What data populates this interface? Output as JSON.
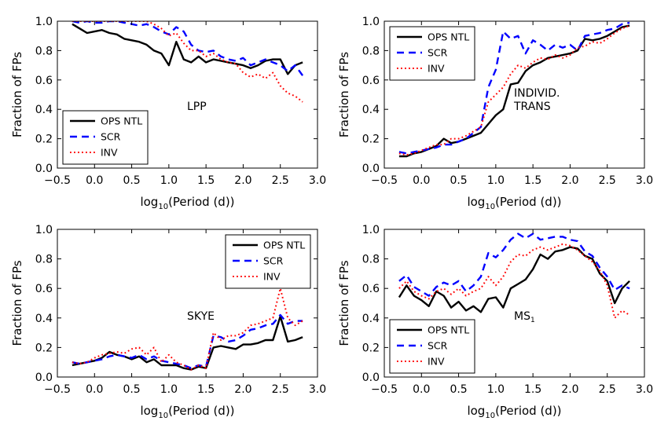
{
  "figure": {
    "series_styles": [
      {
        "color": "#000000",
        "dash": "",
        "width": 2.4
      },
      {
        "color": "#0000ff",
        "dash": "9,6",
        "width": 2.4
      },
      {
        "color": "#ff0000",
        "dash": "1.8,3.2",
        "width": 2.0
      }
    ]
  },
  "chart_data": [
    {
      "type": "line",
      "annotation": [
        "LPP"
      ],
      "xlabel": "log$_{10}$(Period (d))",
      "xlabel_main": "log",
      "xlabel_sub": "10",
      "xlabel_rest": "(Period (d))",
      "ylabel": "Fraction of FPs",
      "xlim": [
        -0.5,
        3.0
      ],
      "ylim": [
        0.0,
        1.0
      ],
      "xticks": [
        "−0.5",
        "0.0",
        "0.5",
        "1.0",
        "1.5",
        "2.0",
        "2.5",
        "3.0"
      ],
      "yticks": [
        "0.0",
        "0.2",
        "0.4",
        "0.6",
        "0.8",
        "1.0"
      ],
      "legend_position": "lower-left",
      "x": [
        -0.3,
        -0.2,
        -0.1,
        0.0,
        0.1,
        0.2,
        0.3,
        0.4,
        0.5,
        0.6,
        0.7,
        0.8,
        0.9,
        1.0,
        1.1,
        1.2,
        1.3,
        1.4,
        1.5,
        1.6,
        1.7,
        1.8,
        1.9,
        2.0,
        2.1,
        2.2,
        2.3,
        2.4,
        2.5,
        2.6,
        2.7,
        2.8
      ],
      "series": [
        {
          "name": "OPS NTL",
          "values": [
            0.98,
            0.95,
            0.92,
            0.93,
            0.94,
            0.92,
            0.91,
            0.88,
            0.87,
            0.86,
            0.84,
            0.8,
            0.78,
            0.7,
            0.86,
            0.74,
            0.72,
            0.76,
            0.72,
            0.74,
            0.73,
            0.72,
            0.71,
            0.7,
            0.68,
            0.7,
            0.73,
            0.74,
            0.74,
            0.64,
            0.7,
            0.72
          ]
        },
        {
          "name": "SCR",
          "values": [
            1.0,
            0.99,
            1.0,
            0.99,
            0.99,
            1.0,
            1.0,
            0.99,
            0.98,
            0.97,
            0.98,
            0.96,
            0.93,
            0.91,
            0.96,
            0.93,
            0.84,
            0.8,
            0.79,
            0.8,
            0.76,
            0.74,
            0.73,
            0.75,
            0.7,
            0.72,
            0.74,
            0.72,
            0.7,
            0.66,
            0.7,
            0.63
          ]
        },
        {
          "name": "INV",
          "values": [
            1.0,
            1.0,
            1.0,
            1.0,
            1.0,
            1.0,
            1.0,
            1.0,
            1.0,
            1.0,
            1.0,
            0.98,
            0.95,
            0.9,
            0.92,
            0.85,
            0.8,
            0.8,
            0.76,
            0.78,
            0.74,
            0.72,
            0.71,
            0.65,
            0.62,
            0.64,
            0.61,
            0.65,
            0.56,
            0.51,
            0.49,
            0.45
          ]
        }
      ]
    },
    {
      "type": "line",
      "annotation": [
        "INDIVID.",
        "TRANS"
      ],
      "xlabel": "log$_{10}$(Period (d))",
      "xlabel_main": "log",
      "xlabel_sub": "10",
      "xlabel_rest": "(Period (d))",
      "ylabel": "Fraction of FPs",
      "xlim": [
        -0.5,
        3.0
      ],
      "ylim": [
        0.0,
        1.0
      ],
      "xticks": [
        "−0.5",
        "0.0",
        "0.5",
        "1.0",
        "1.5",
        "2.0",
        "2.5",
        "3.0"
      ],
      "yticks": [
        "0.0",
        "0.2",
        "0.4",
        "0.6",
        "0.8",
        "1.0"
      ],
      "legend_position": "upper-left",
      "x": [
        -0.3,
        -0.2,
        -0.1,
        0.0,
        0.1,
        0.2,
        0.3,
        0.4,
        0.5,
        0.6,
        0.7,
        0.8,
        0.9,
        1.0,
        1.1,
        1.2,
        1.3,
        1.4,
        1.5,
        1.6,
        1.7,
        1.8,
        1.9,
        2.0,
        2.1,
        2.2,
        2.3,
        2.4,
        2.5,
        2.6,
        2.7,
        2.8
      ],
      "series": [
        {
          "name": "OPS NTL",
          "values": [
            0.08,
            0.08,
            0.1,
            0.11,
            0.13,
            0.15,
            0.2,
            0.17,
            0.18,
            0.2,
            0.22,
            0.24,
            0.3,
            0.36,
            0.4,
            0.57,
            0.58,
            0.66,
            0.7,
            0.72,
            0.75,
            0.76,
            0.77,
            0.78,
            0.8,
            0.88,
            0.87,
            0.88,
            0.9,
            0.93,
            0.96,
            0.97
          ]
        },
        {
          "name": "SCR",
          "values": [
            0.11,
            0.1,
            0.11,
            0.12,
            0.13,
            0.14,
            0.16,
            0.16,
            0.18,
            0.2,
            0.24,
            0.28,
            0.55,
            0.67,
            0.93,
            0.88,
            0.9,
            0.78,
            0.87,
            0.84,
            0.8,
            0.84,
            0.82,
            0.84,
            0.8,
            0.9,
            0.91,
            0.92,
            0.94,
            0.95,
            0.98,
            0.99
          ]
        },
        {
          "name": "INV",
          "values": [
            0.1,
            0.09,
            0.1,
            0.12,
            0.14,
            0.16,
            0.16,
            0.2,
            0.2,
            0.22,
            0.25,
            0.28,
            0.45,
            0.5,
            0.55,
            0.64,
            0.7,
            0.68,
            0.72,
            0.75,
            0.74,
            0.77,
            0.75,
            0.77,
            0.82,
            0.83,
            0.86,
            0.85,
            0.88,
            0.92,
            0.95,
            0.97
          ]
        }
      ]
    },
    {
      "type": "line",
      "annotation": [
        "SKYE"
      ],
      "xlabel": "log$_{10}$(Period (d))",
      "xlabel_main": "log",
      "xlabel_sub": "10",
      "xlabel_rest": "(Period (d))",
      "ylabel": "Fraction of FPs",
      "xlim": [
        -0.5,
        3.0
      ],
      "ylim": [
        0.0,
        1.0
      ],
      "xticks": [
        "−0.5",
        "0.0",
        "0.5",
        "1.0",
        "1.5",
        "2.0",
        "2.5",
        "3.0"
      ],
      "yticks": [
        "0.0",
        "0.2",
        "0.4",
        "0.6",
        "0.8",
        "1.0"
      ],
      "legend_position": "upper-right",
      "x": [
        -0.3,
        -0.2,
        -0.1,
        0.0,
        0.1,
        0.2,
        0.3,
        0.4,
        0.5,
        0.6,
        0.7,
        0.8,
        0.9,
        1.0,
        1.1,
        1.2,
        1.3,
        1.4,
        1.5,
        1.6,
        1.7,
        1.8,
        1.9,
        2.0,
        2.1,
        2.2,
        2.3,
        2.4,
        2.5,
        2.6,
        2.7,
        2.8
      ],
      "series": [
        {
          "name": "OPS NTL",
          "values": [
            0.08,
            0.09,
            0.1,
            0.11,
            0.13,
            0.17,
            0.15,
            0.14,
            0.12,
            0.14,
            0.1,
            0.12,
            0.08,
            0.08,
            0.08,
            0.06,
            0.05,
            0.07,
            0.06,
            0.2,
            0.21,
            0.2,
            0.19,
            0.22,
            0.22,
            0.23,
            0.25,
            0.25,
            0.41,
            0.24,
            0.25,
            0.27
          ]
        },
        {
          "name": "SCR",
          "values": [
            0.1,
            0.09,
            0.1,
            0.11,
            0.12,
            0.14,
            0.15,
            0.14,
            0.13,
            0.15,
            0.12,
            0.14,
            0.11,
            0.1,
            0.09,
            0.08,
            0.06,
            0.08,
            0.07,
            0.28,
            0.27,
            0.24,
            0.25,
            0.28,
            0.32,
            0.33,
            0.35,
            0.36,
            0.42,
            0.36,
            0.38,
            0.38
          ]
        },
        {
          "name": "INV",
          "values": [
            0.1,
            0.09,
            0.1,
            0.13,
            0.15,
            0.16,
            0.17,
            0.16,
            0.19,
            0.2,
            0.15,
            0.2,
            0.1,
            0.15,
            0.1,
            0.08,
            0.05,
            0.08,
            0.06,
            0.3,
            0.25,
            0.28,
            0.28,
            0.3,
            0.35,
            0.36,
            0.38,
            0.4,
            0.6,
            0.4,
            0.35,
            0.38
          ]
        }
      ]
    },
    {
      "type": "line",
      "annotation": [
        "MS$_1$"
      ],
      "annotation_main": "MS",
      "annotation_sub": "1",
      "xlabel": "log$_{10}$(Period (d))",
      "xlabel_main": "log",
      "xlabel_sub": "10",
      "xlabel_rest": "(Period (d))",
      "ylabel": "Fraction of FPs",
      "xlim": [
        -0.5,
        3.0
      ],
      "ylim": [
        0.0,
        1.0
      ],
      "xticks": [
        "−0.5",
        "0.0",
        "0.5",
        "1.0",
        "1.5",
        "2.0",
        "2.5",
        "3.0"
      ],
      "yticks": [
        "0.0",
        "0.2",
        "0.4",
        "0.6",
        "0.8",
        "1.0"
      ],
      "legend_position": "lower-left",
      "x": [
        -0.3,
        -0.2,
        -0.1,
        0.0,
        0.1,
        0.2,
        0.3,
        0.4,
        0.5,
        0.6,
        0.7,
        0.8,
        0.9,
        1.0,
        1.1,
        1.2,
        1.3,
        1.4,
        1.5,
        1.6,
        1.7,
        1.8,
        1.9,
        2.0,
        2.1,
        2.2,
        2.3,
        2.4,
        2.5,
        2.6,
        2.7,
        2.8
      ],
      "series": [
        {
          "name": "OPS NTL",
          "values": [
            0.54,
            0.62,
            0.55,
            0.52,
            0.48,
            0.58,
            0.55,
            0.47,
            0.51,
            0.45,
            0.48,
            0.44,
            0.53,
            0.54,
            0.47,
            0.6,
            0.63,
            0.66,
            0.73,
            0.83,
            0.8,
            0.85,
            0.86,
            0.88,
            0.87,
            0.82,
            0.8,
            0.7,
            0.65,
            0.5,
            0.6,
            0.65
          ]
        },
        {
          "name": "SCR",
          "values": [
            0.65,
            0.69,
            0.61,
            0.58,
            0.55,
            0.61,
            0.64,
            0.62,
            0.65,
            0.58,
            0.62,
            0.68,
            0.84,
            0.81,
            0.86,
            0.93,
            0.97,
            0.94,
            0.97,
            0.93,
            0.94,
            0.95,
            0.95,
            0.93,
            0.92,
            0.85,
            0.82,
            0.74,
            0.68,
            0.59,
            0.62,
            0.6
          ]
        },
        {
          "name": "INV",
          "values": [
            0.6,
            0.65,
            0.58,
            0.55,
            0.53,
            0.58,
            0.6,
            0.56,
            0.6,
            0.55,
            0.58,
            0.6,
            0.68,
            0.62,
            0.68,
            0.78,
            0.83,
            0.82,
            0.86,
            0.88,
            0.86,
            0.88,
            0.9,
            0.89,
            0.86,
            0.82,
            0.78,
            0.72,
            0.62,
            0.4,
            0.45,
            0.42
          ]
        }
      ]
    }
  ]
}
